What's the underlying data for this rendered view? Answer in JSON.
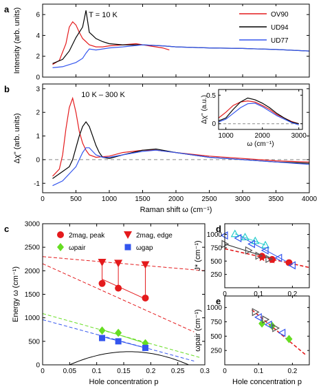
{
  "chart_data": [
    {
      "id": "a",
      "panel_label": "a",
      "type": "line",
      "annotation": "T = 10 K",
      "xlabel": "",
      "ylabel": "Intensity (arb. units)",
      "xlim": [
        0,
        4000
      ],
      "ylim": [
        0,
        7
      ],
      "xticks": [
        0,
        500,
        1000,
        1500,
        2000,
        2500,
        3000,
        3500,
        4000
      ],
      "yticks": [
        0,
        2,
        4,
        6
      ],
      "show_xticklabels": false,
      "legend_position": "top-right",
      "series": [
        {
          "name": "OV90",
          "color": "#e41a1c",
          "x": [
            150,
            250,
            350,
            400,
            450,
            500,
            550,
            600,
            650,
            700,
            800,
            900,
            1000,
            1200,
            1400,
            1600,
            1800,
            1900
          ],
          "y": [
            1.2,
            1.6,
            3.2,
            4.8,
            5.3,
            5.0,
            4.3,
            3.7,
            3.4,
            3.1,
            2.9,
            2.9,
            3.0,
            3.1,
            3.2,
            3.0,
            2.8,
            2.6
          ]
        },
        {
          "name": "UD94",
          "color": "#000000",
          "x": [
            150,
            300,
            400,
            500,
            600,
            650,
            700,
            750,
            800,
            900,
            1000,
            1200,
            1500,
            1800,
            2000,
            2500,
            3000,
            3500,
            4000
          ],
          "y": [
            1.3,
            1.7,
            2.5,
            3.8,
            4.8,
            6.4,
            4.3,
            4.0,
            3.7,
            3.4,
            3.2,
            3.1,
            3.1,
            3.0,
            2.9,
            2.8,
            2.75,
            2.65,
            2.5
          ]
        },
        {
          "name": "UD77",
          "color": "#3355ee",
          "x": [
            150,
            300,
            500,
            600,
            650,
            700,
            800,
            900,
            1000,
            1200,
            1500,
            1800,
            2000,
            2500,
            3000,
            3500,
            4000
          ],
          "y": [
            0.9,
            1.0,
            1.4,
            1.8,
            2.3,
            2.7,
            2.6,
            2.7,
            2.8,
            2.9,
            3.1,
            3.0,
            2.9,
            2.8,
            2.75,
            2.65,
            2.5
          ]
        }
      ]
    },
    {
      "id": "b",
      "panel_label": "b",
      "type": "line",
      "annotation": "10 K – 300 K",
      "xlabel": "Raman shift ω (cm⁻¹)",
      "ylabel": "Δχ'' (arb. units)",
      "xlim": [
        0,
        4000
      ],
      "ylim": [
        -1.4,
        3.2
      ],
      "xticks": [
        0,
        500,
        1000,
        1500,
        2000,
        2500,
        3000,
        3500,
        4000
      ],
      "yticks": [
        -1,
        0,
        1,
        2,
        3
      ],
      "zero_line": true,
      "series": [
        {
          "name": "OV90",
          "color": "#e41a1c",
          "x": [
            150,
            250,
            300,
            350,
            400,
            450,
            500,
            550,
            600,
            650,
            700,
            800,
            1000,
            1200,
            1500,
            1700,
            2000,
            2500,
            3000,
            3500,
            4000
          ],
          "y": [
            -0.7,
            -0.4,
            0.2,
            1.3,
            2.2,
            2.6,
            2.0,
            1.2,
            0.7,
            0.4,
            0.2,
            0.1,
            0.15,
            0.3,
            0.4,
            0.4,
            0.3,
            0.15,
            0.05,
            -0.05,
            -0.1
          ]
        },
        {
          "name": "UD94",
          "color": "#000000",
          "x": [
            150,
            300,
            400,
            450,
            500,
            550,
            600,
            650,
            700,
            750,
            800,
            850,
            900,
            1000,
            1200,
            1500,
            1700,
            2000,
            2500,
            3000,
            3500,
            4000
          ],
          "y": [
            -0.8,
            -0.5,
            -0.3,
            0.0,
            0.5,
            1.0,
            1.4,
            1.6,
            1.4,
            1.0,
            0.6,
            0.3,
            0.1,
            0.05,
            0.2,
            0.4,
            0.45,
            0.3,
            0.1,
            0.0,
            -0.1,
            -0.15
          ]
        },
        {
          "name": "UD77",
          "color": "#3355ee",
          "x": [
            150,
            300,
            400,
            500,
            550,
            600,
            650,
            700,
            750,
            800,
            900,
            1000,
            1200,
            1500,
            1700,
            2000,
            2500,
            3000,
            3500,
            4000
          ],
          "y": [
            -1.1,
            -0.9,
            -0.6,
            -0.3,
            0.0,
            0.3,
            0.5,
            0.5,
            0.35,
            0.2,
            0.1,
            0.1,
            0.2,
            0.35,
            0.4,
            0.3,
            0.1,
            0.0,
            -0.1,
            -0.2
          ]
        }
      ]
    },
    {
      "id": "b_inset",
      "type": "line",
      "xlabel": "ω (cm⁻¹)",
      "ylabel": "Δχ'' (a.u.)",
      "xlim": [
        800,
        3100
      ],
      "ylim": [
        -0.1,
        0.6
      ],
      "xticks": [
        1000,
        2000,
        3000
      ],
      "yticks": [
        0,
        0.5
      ],
      "yticklabels": [
        "0",
        "0.5"
      ],
      "zero_line": true,
      "series": [
        {
          "name": "OV90",
          "color": "#e41a1c",
          "x": [
            800,
            1000,
            1200,
            1400,
            1600,
            1800,
            2000,
            2200,
            2400,
            2600,
            2800,
            3000
          ],
          "y": [
            0.1,
            0.2,
            0.32,
            0.38,
            0.4,
            0.38,
            0.32,
            0.25,
            0.16,
            0.1,
            0.04,
            0.0
          ]
        },
        {
          "name": "UD94",
          "color": "#000000",
          "x": [
            800,
            1000,
            1200,
            1400,
            1600,
            1800,
            2000,
            2200,
            2400,
            2600,
            2800,
            3000
          ],
          "y": [
            0.05,
            0.1,
            0.25,
            0.38,
            0.45,
            0.42,
            0.36,
            0.28,
            0.18,
            0.1,
            0.03,
            0.0
          ]
        },
        {
          "name": "UD77",
          "color": "#3355ee",
          "x": [
            800,
            1000,
            1200,
            1400,
            1600,
            1800,
            2000,
            2200,
            2400,
            2600,
            2800,
            3000
          ],
          "y": [
            0.03,
            0.08,
            0.18,
            0.28,
            0.35,
            0.36,
            0.3,
            0.22,
            0.14,
            0.08,
            0.02,
            -0.02
          ]
        }
      ]
    },
    {
      "id": "c",
      "panel_label": "c",
      "type": "scatter",
      "xlabel": "Hole concentration p",
      "ylabel": "Energy ω (cm⁻¹)",
      "xlim": [
        0,
        0.3
      ],
      "ylim": [
        0,
        3000
      ],
      "xticks": [
        0,
        0.05,
        0.1,
        0.15,
        0.2,
        0.25,
        0.3
      ],
      "xticklabels": [
        "0",
        "0.05",
        "0.1",
        "0.15",
        "0.2",
        "0.25",
        "0.3"
      ],
      "yticks": [
        0,
        500,
        1000,
        1500,
        2000,
        2500,
        3000
      ],
      "series": [
        {
          "name": "2mag, peak",
          "marker": "circle",
          "color": "#e41a1c",
          "x": [
            0.11,
            0.14,
            0.19
          ],
          "y": [
            1730,
            1630,
            1420
          ]
        },
        {
          "name": "2mag, edge",
          "marker": "triangle-down",
          "color": "#e41a1c",
          "x": [
            0.11,
            0.14,
            0.19
          ],
          "y": [
            2180,
            2160,
            2130
          ]
        },
        {
          "name": "ωpair",
          "marker": "diamond",
          "color": "#66dd22",
          "x": [
            0.11,
            0.14,
            0.19
          ],
          "y": [
            730,
            680,
            460
          ]
        },
        {
          "name": "ωgap",
          "marker": "square",
          "color": "#3355ee",
          "x": [
            0.11,
            0.14,
            0.19
          ],
          "y": [
            570,
            500,
            360
          ]
        }
      ],
      "lines": [
        {
          "color": "#e41a1c",
          "style": "dashed",
          "x": [
            0,
            0.3
          ],
          "y": [
            2300,
            2000
          ]
        },
        {
          "color": "#e41a1c",
          "style": "dashed",
          "x": [
            0,
            0.28
          ],
          "y": [
            2150,
            700
          ]
        },
        {
          "color": "#e41a1c",
          "style": "solid",
          "x": [
            0.11,
            0.19
          ],
          "y": [
            1820,
            1400
          ]
        },
        {
          "color": "#66dd22",
          "style": "dashed",
          "x": [
            0,
            0.29
          ],
          "y": [
            1090,
            160
          ]
        },
        {
          "color": "#66dd22",
          "style": "solid",
          "x": [
            0.11,
            0.19
          ],
          "y": [
            750,
            460
          ]
        },
        {
          "color": "#3355ee",
          "style": "dashed",
          "x": [
            0,
            0.28
          ],
          "y": [
            960,
            80
          ]
        },
        {
          "color": "#3355ee",
          "style": "solid",
          "x": [
            0.11,
            0.19
          ],
          "y": [
            600,
            360
          ]
        }
      ],
      "dome": {
        "color": "#000000",
        "x": [
          0.05,
          0.27
        ],
        "peak_x": 0.16,
        "peak_y": 280
      }
    },
    {
      "id": "d",
      "panel_label": "d",
      "type": "scatter",
      "xlabel": "",
      "ylabel": "J* (cm⁻¹)",
      "xlim": [
        0,
        0.25
      ],
      "ylim": [
        0,
        1200
      ],
      "xticks": [
        0,
        0.1,
        0.2
      ],
      "xticklabels": [
        "0",
        "0.1",
        "0.2"
      ],
      "show_xticklabels": true,
      "yticks": [
        250,
        500,
        750,
        1000
      ],
      "series": [
        {
          "marker": "circle",
          "color": "#e41a1c",
          "x": [
            0.11,
            0.14,
            0.19
          ],
          "y": [
            590,
            530,
            470
          ]
        },
        {
          "marker": "star",
          "color": "#e41a1c",
          "x": [
            0.11,
            0.14
          ],
          "y": [
            560,
            520
          ]
        },
        {
          "marker": "triangle-up-open",
          "color": "#22cccc",
          "x": [
            0.03,
            0.06,
            0.09,
            0.12
          ],
          "y": [
            1010,
            950,
            880,
            800
          ]
        },
        {
          "marker": "triangle-left-open",
          "color": "#3355ee",
          "x": [
            0.0,
            0.04,
            0.08,
            0.12,
            0.16,
            0.2
          ],
          "y": [
            980,
            930,
            820,
            700,
            560,
            420
          ]
        },
        {
          "marker": "triangle-right-open",
          "color": "#555555",
          "x": [
            0.0,
            0.07,
            0.1,
            0.13
          ],
          "y": [
            820,
            700,
            600,
            540
          ]
        }
      ],
      "lines": [
        {
          "color": "#e41a1c",
          "style": "dashed",
          "x": [
            0,
            0.25
          ],
          "y": [
            730,
            380
          ]
        },
        {
          "color": "#222222",
          "style": "solid",
          "x": [
            0,
            0.13
          ],
          "y": [
            820,
            560
          ]
        },
        {
          "color": "#3355ee",
          "style": "solid",
          "x": [
            0.05,
            0.2
          ],
          "y": [
            950,
            430
          ]
        },
        {
          "color": "#22cccc",
          "style": "solid",
          "x": [
            0.03,
            0.12
          ],
          "y": [
            1010,
            800
          ]
        }
      ]
    },
    {
      "id": "e",
      "panel_label": "e",
      "type": "scatter",
      "xlabel": "Hole concentration p",
      "ylabel": "ωpair (cm⁻¹)",
      "xlim": [
        0,
        0.25
      ],
      "ylim": [
        0,
        1200
      ],
      "xticks": [
        0,
        0.1,
        0.2
      ],
      "xticklabels": [
        "0",
        "0.1",
        "0.2"
      ],
      "yticks": [
        250,
        500,
        750,
        1000
      ],
      "series": [
        {
          "marker": "diamond",
          "color": "#66dd22",
          "x": [
            0.11,
            0.14,
            0.19
          ],
          "y": [
            720,
            680,
            450
          ]
        },
        {
          "marker": "triangle-right-open",
          "color": "#555555",
          "x": [
            0.09,
            0.12,
            0.15
          ],
          "y": [
            920,
            790,
            640
          ]
        },
        {
          "marker": "triangle-left-open",
          "color": "#3355ee",
          "x": [
            0.1,
            0.13,
            0.17
          ],
          "y": [
            830,
            700,
            560
          ]
        }
      ],
      "lines": [
        {
          "color": "#e41a1c",
          "style": "dashed",
          "x": [
            0.08,
            0.24
          ],
          "y": [
            960,
            170
          ]
        }
      ]
    }
  ]
}
